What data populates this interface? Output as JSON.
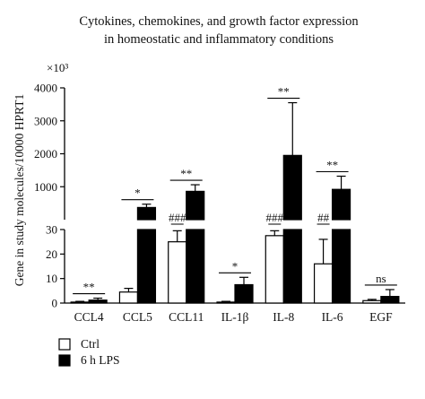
{
  "chart_data": {
    "type": "bar",
    "title": "Cytokines, chemokines, and growth factor expression in homeostatic and inflammatory conditions",
    "title_lines": [
      "Cytokines, chemokines, and growth factor expression",
      "in homeostatic and inflammatory conditions"
    ],
    "ylabel": "Gene in study molecules/10000 HPRT1",
    "upper_axis_multiplier": "×10³",
    "axis_break": true,
    "y_lower": {
      "range": [
        0,
        30
      ],
      "ticks": [
        "0",
        "10",
        "20",
        "30"
      ]
    },
    "y_upper": {
      "range": [
        0,
        4000
      ],
      "ticks": [
        "1000",
        "2000",
        "3000",
        "4000"
      ]
    },
    "categories": [
      "CCL4",
      "CCL5",
      "CCL11",
      "IL-1β",
      "IL-8",
      "IL-6",
      "EGF"
    ],
    "series": [
      {
        "name": "Ctrl",
        "color": "#ffffff",
        "values": [
          0.4,
          4.5,
          25,
          0.4,
          27.5,
          16,
          1
        ],
        "error": [
          0.3,
          1.5,
          4.5,
          0.3,
          2,
          10,
          0.5
        ]
      },
      {
        "name": "6 h LPS",
        "color": "#000000",
        "values": [
          1.2,
          370,
          860,
          7.5,
          1950,
          920,
          2.7
        ],
        "error": [
          0.8,
          100,
          200,
          3,
          1600,
          400,
          2.8
        ]
      }
    ],
    "significance": [
      "**",
      "*",
      "**",
      "*",
      "**",
      "**",
      "ns"
    ],
    "secondary_annotations": [
      "",
      "",
      "###",
      "",
      "###",
      "##",
      ""
    ],
    "legend": {
      "placement": "bottom-left",
      "entries": [
        "Ctrl",
        "6 h LPS"
      ]
    },
    "grid": false
  }
}
